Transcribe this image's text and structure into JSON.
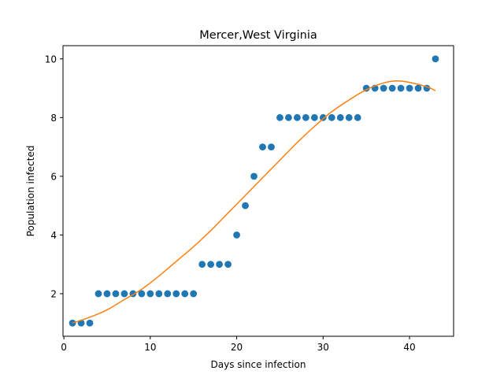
{
  "chart_data": {
    "type": "scatter",
    "title": "Mercer,West Virginia",
    "xlabel": "Days since infection",
    "ylabel": "Population infected",
    "xlim": [
      -0.1,
      45.1
    ],
    "ylim": [
      0.55,
      10.45
    ],
    "xticks": [
      0,
      10,
      20,
      30,
      40
    ],
    "yticks": [
      2,
      4,
      6,
      8,
      10
    ],
    "grid": false,
    "series": [
      {
        "kind": "scatter",
        "color": "#1f77b4",
        "x": [
          1,
          2,
          3,
          4,
          5,
          6,
          7,
          8,
          9,
          10,
          11,
          12,
          13,
          14,
          15,
          16,
          17,
          18,
          19,
          20,
          21,
          22,
          23,
          24,
          25,
          26,
          27,
          28,
          29,
          30,
          31,
          32,
          33,
          34,
          35,
          36,
          37,
          38,
          39,
          40,
          41,
          42,
          43
        ],
        "y": [
          1,
          1,
          1,
          2,
          2,
          2,
          2,
          2,
          2,
          2,
          2,
          2,
          2,
          2,
          2,
          3,
          3,
          3,
          3,
          4,
          5,
          6,
          7,
          7,
          8,
          8,
          8,
          8,
          8,
          8,
          8,
          8,
          8,
          8,
          9,
          9,
          9,
          9,
          9,
          9,
          9,
          9,
          10
        ]
      },
      {
        "kind": "line",
        "color": "#ff7f0e",
        "x": [
          1,
          3,
          5,
          7,
          9,
          11,
          13,
          15,
          17,
          19,
          21,
          23,
          25,
          27,
          29,
          31,
          33,
          35,
          37,
          38.5,
          40,
          42,
          43
        ],
        "y": [
          1.0,
          1.2,
          1.45,
          1.8,
          2.15,
          2.6,
          3.1,
          3.6,
          4.15,
          4.75,
          5.35,
          5.95,
          6.55,
          7.15,
          7.7,
          8.2,
          8.6,
          8.95,
          9.18,
          9.25,
          9.2,
          9.05,
          8.92
        ]
      }
    ]
  }
}
